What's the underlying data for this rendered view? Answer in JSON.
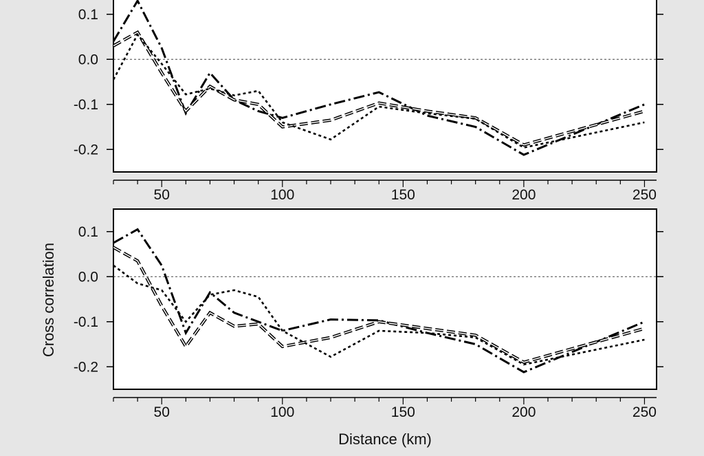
{
  "figure": {
    "ylabel": "Cross correlation",
    "xlabel": "Distance (km)"
  },
  "chart_data": [
    {
      "type": "line",
      "xlabel": "",
      "ylabel": "",
      "xlim": [
        30,
        255
      ],
      "ylim": [
        -0.25,
        0.15
      ],
      "xticks": [
        50,
        100,
        150,
        200,
        250
      ],
      "yticks": [
        -0.2,
        -0.1,
        0.0,
        0.1
      ],
      "ytick_labels": [
        "-0.2",
        "-0.1",
        "0.0",
        "0.1"
      ],
      "zero_reference_line": true,
      "grid": false,
      "x": [
        30,
        40,
        50,
        60,
        70,
        80,
        90,
        100,
        120,
        140,
        160,
        180,
        200,
        250
      ],
      "series": [
        {
          "style": "dash-dot",
          "values": [
            0.04,
            0.13,
            0.025,
            -0.12,
            -0.03,
            -0.09,
            -0.115,
            -0.13,
            -0.1,
            -0.073,
            -0.125,
            -0.15,
            -0.212,
            -0.1
          ]
        },
        {
          "style": "dashed-double",
          "values": [
            0.03,
            0.06,
            -0.03,
            -0.115,
            -0.06,
            -0.09,
            -0.1,
            -0.15,
            -0.135,
            -0.097,
            -0.115,
            -0.13,
            -0.19,
            -0.115
          ]
        },
        {
          "style": "dotted",
          "values": [
            -0.045,
            0.055,
            -0.01,
            -0.078,
            -0.065,
            -0.08,
            -0.07,
            -0.14,
            -0.178,
            -0.105,
            -0.12,
            -0.132,
            -0.196,
            -0.14
          ]
        }
      ]
    },
    {
      "type": "line",
      "xlabel": "",
      "ylabel": "",
      "xlim": [
        30,
        255
      ],
      "ylim": [
        -0.25,
        0.15
      ],
      "xticks": [
        50,
        100,
        150,
        200,
        250
      ],
      "yticks": [
        -0.2,
        -0.1,
        0.0,
        0.1
      ],
      "ytick_labels": [
        "-0.2",
        "-0.1",
        "0.0",
        "0.1"
      ],
      "zero_reference_line": true,
      "grid": false,
      "x": [
        30,
        40,
        50,
        60,
        70,
        80,
        90,
        100,
        120,
        140,
        160,
        180,
        200,
        250
      ],
      "series": [
        {
          "style": "dash-dot",
          "values": [
            0.075,
            0.105,
            0.025,
            -0.125,
            -0.035,
            -0.08,
            -0.1,
            -0.12,
            -0.095,
            -0.097,
            -0.125,
            -0.15,
            -0.212,
            -0.1
          ]
        },
        {
          "style": "dashed-double",
          "values": [
            0.065,
            0.035,
            -0.065,
            -0.155,
            -0.08,
            -0.11,
            -0.105,
            -0.155,
            -0.135,
            -0.1,
            -0.115,
            -0.13,
            -0.19,
            -0.115
          ]
        },
        {
          "style": "dotted",
          "values": [
            0.025,
            -0.015,
            -0.03,
            -0.1,
            -0.04,
            -0.03,
            -0.045,
            -0.12,
            -0.178,
            -0.12,
            -0.125,
            -0.135,
            -0.195,
            -0.14
          ]
        }
      ]
    }
  ]
}
